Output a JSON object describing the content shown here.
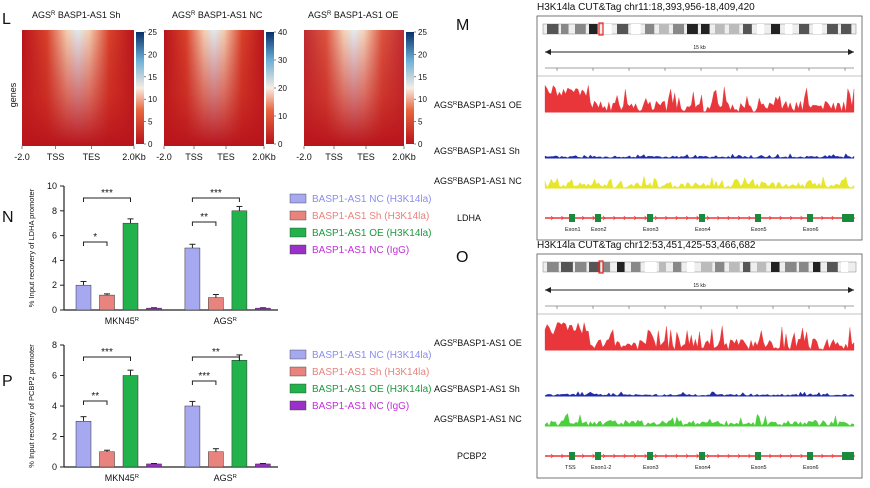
{
  "panel_letters": {
    "L": "L",
    "M": "M",
    "N": "N",
    "O": "O",
    "P": "P"
  },
  "heatmaps": [
    {
      "title_pre": "AGS",
      "title_sup": "R",
      "title_post": " BASP1-AS1 Sh",
      "max": 25,
      "ticks": [
        0,
        5,
        10,
        15,
        20,
        25
      ]
    },
    {
      "title_pre": "AGS",
      "title_sup": "R",
      "title_post": " BASP1-AS1 NC",
      "max": 40,
      "ticks": [
        0,
        10,
        20,
        30,
        40
      ]
    },
    {
      "title_pre": "AGS",
      "title_sup": "R",
      "title_post": " BASP1-AS1 OE",
      "max": 25,
      "ticks": [
        0,
        5,
        10,
        15,
        20,
        25
      ]
    }
  ],
  "heatmap_ylabel": "genes",
  "heatmap_xticks": [
    "-2.0",
    "TSS",
    "TES",
    "2.0Kb"
  ],
  "tracks": [
    {
      "title": "H3K14la CUT&Tag chr11:18,393,956-18,409,420",
      "scale": "15 kb",
      "gene": "LDHA",
      "rows": [
        {
          "pre": "AGS",
          "sup": "R",
          "post": "BASP1-AS1 OE",
          "color": "#e8363a",
          "level": 0.85
        },
        {
          "pre": "AGS",
          "sup": "R",
          "post": "BASP1-AS1 Sh",
          "color": "#1f2aa8",
          "level": 0.25
        },
        {
          "pre": "AGS",
          "sup": "R",
          "post": "BASP1-AS1 NC",
          "color": "#e6e62a",
          "level": 0.45
        }
      ],
      "exons": [
        "Exon1",
        "Exon2",
        "Exon3",
        "Exon4",
        "Exon5",
        "Exon6"
      ]
    },
    {
      "title": "H3K14la CUT&Tag chr12:53,451,425-53,466,682",
      "scale": "15 kb",
      "gene": "PCBP2",
      "rows": [
        {
          "pre": "AGS",
          "sup": "R",
          "post": "BASP1-AS1 OE",
          "color": "#e8363a",
          "level": 0.85
        },
        {
          "pre": "AGS",
          "sup": "R",
          "post": "BASP1-AS1 Sh",
          "color": "#1f2aa8",
          "level": 0.25
        },
        {
          "pre": "AGS",
          "sup": "R",
          "post": "BASP1-AS1 NC",
          "color": "#4ccf3c",
          "level": 0.45
        }
      ],
      "exons": [
        "TSS",
        "Exon1-2",
        "Exon3",
        "Exon4",
        "Exon5",
        "Exon6"
      ]
    }
  ],
  "chart_data": [
    {
      "type": "bar",
      "panel": "N",
      "ylabel": "% Input recovery of LDHA promoter",
      "ylim": [
        0,
        10
      ],
      "yticks": [
        0,
        2,
        4,
        6,
        8,
        10
      ],
      "groups": [
        {
          "pre": "MKN45",
          "sup": "R"
        },
        {
          "pre": "AGS",
          "sup": "R"
        }
      ],
      "series": [
        {
          "name": "BASP1-AS1 NC (H3K14la)",
          "color": "#a6a8f0",
          "text_color": "#8a8cf0",
          "values": [
            2.0,
            5.0
          ],
          "errors": [
            0.3,
            0.3
          ]
        },
        {
          "name": "BASP1-AS1 Sh (H3K14la)",
          "color": "#e8837e",
          "text_color": "#e8837e",
          "values": [
            1.2,
            1.0
          ],
          "errors": [
            0.1,
            0.25
          ]
        },
        {
          "name": "BASP1-AS1 OE (H3K14la)",
          "color": "#22b24c",
          "text_color": "#1a9a3c",
          "values": [
            7.0,
            8.0
          ],
          "errors": [
            0.35,
            0.35
          ]
        },
        {
          "name": "BASP1-AS1 NC (IgG)",
          "color": "#9b2fc9",
          "text_color": "#c32fd9",
          "values": [
            0.15,
            0.15
          ],
          "errors": [
            0.03,
            0.03
          ]
        }
      ],
      "brackets": [
        {
          "group": 0,
          "from": 0,
          "to": 2,
          "label": "***",
          "level": 0
        },
        {
          "group": 0,
          "from": 0,
          "to": 1,
          "label": "*",
          "level": 1
        },
        {
          "group": 1,
          "from": 0,
          "to": 2,
          "label": "***",
          "level": 0
        },
        {
          "group": 1,
          "from": 0,
          "to": 1,
          "label": "**",
          "level": 1
        }
      ]
    },
    {
      "type": "bar",
      "panel": "P",
      "ylabel": "% Input recovery of PCBP2 promoter",
      "ylim": [
        0,
        8
      ],
      "yticks": [
        0,
        2,
        4,
        6,
        8
      ],
      "groups": [
        {
          "pre": "MKN45",
          "sup": "R"
        },
        {
          "pre": "AGS",
          "sup": "R"
        }
      ],
      "series": [
        {
          "name": "BASP1-AS1 NC (H3K14la)",
          "color": "#a6a8f0",
          "text_color": "#8a8cf0",
          "values": [
            3.0,
            4.0
          ],
          "errors": [
            0.3,
            0.3
          ]
        },
        {
          "name": "BASP1-AS1 Sh (H3K14la)",
          "color": "#e8837e",
          "text_color": "#e8837e",
          "values": [
            1.0,
            1.0
          ],
          "errors": [
            0.1,
            0.2
          ]
        },
        {
          "name": "BASP1-AS1 OE (H3K14la)",
          "color": "#22b24c",
          "text_color": "#1a9a3c",
          "values": [
            6.0,
            7.0
          ],
          "errors": [
            0.35,
            0.35
          ]
        },
        {
          "name": "BASP1-AS1 NC (IgG)",
          "color": "#9b2fc9",
          "text_color": "#c32fd9",
          "values": [
            0.2,
            0.2
          ],
          "errors": [
            0.03,
            0.03
          ]
        }
      ],
      "brackets": [
        {
          "group": 0,
          "from": 0,
          "to": 2,
          "label": "***",
          "level": 0
        },
        {
          "group": 0,
          "from": 0,
          "to": 1,
          "label": "**",
          "level": 1
        },
        {
          "group": 1,
          "from": 0,
          "to": 2,
          "label": "**",
          "level": 0
        },
        {
          "group": 1,
          "from": 0,
          "to": 1,
          "label": "***",
          "level": 1
        }
      ]
    }
  ]
}
